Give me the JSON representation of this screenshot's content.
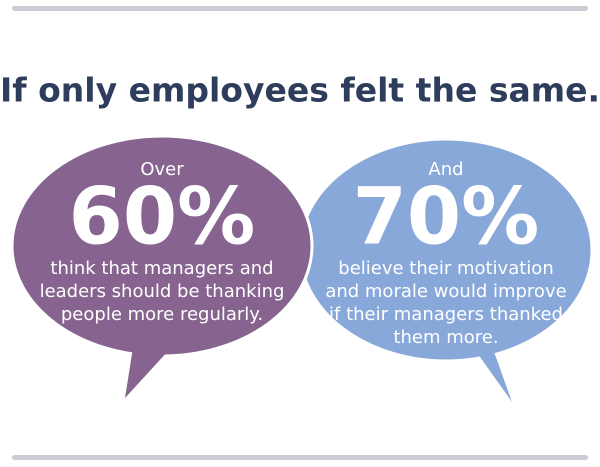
{
  "title": "If only employees felt the same.",
  "bubbles": [
    {
      "intro": "Over",
      "stat": "60%",
      "lines": [
        "think that managers and",
        "leaders should be thanking",
        "people more regularly."
      ]
    },
    {
      "intro": "And",
      "stat": "70%",
      "lines": [
        "believe their motivation",
        "and morale would improve",
        "if their managers thanked",
        "them more."
      ]
    }
  ]
}
